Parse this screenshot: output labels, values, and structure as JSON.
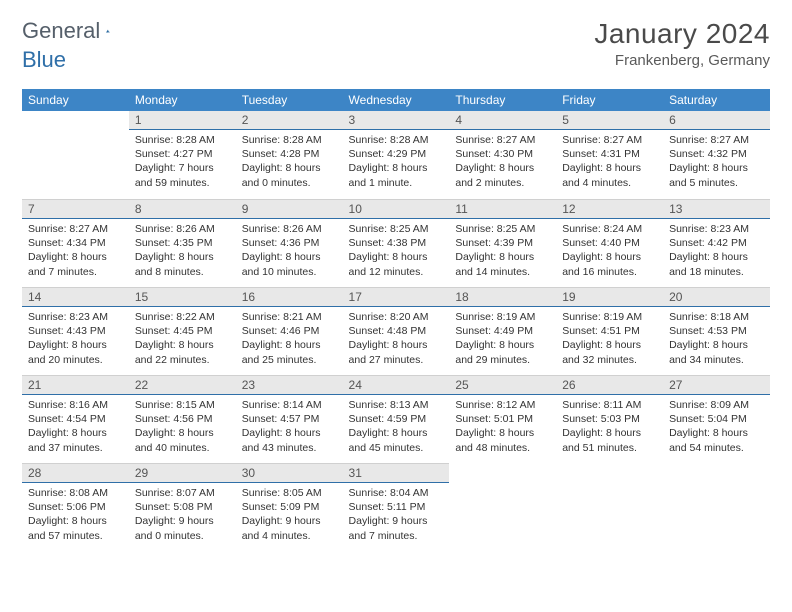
{
  "brand": {
    "part1": "General",
    "part2": "Blue"
  },
  "title": "January 2024",
  "location": "Frankenberg, Germany",
  "weekdays": [
    "Sunday",
    "Monday",
    "Tuesday",
    "Wednesday",
    "Thursday",
    "Friday",
    "Saturday"
  ],
  "colors": {
    "header_bg": "#3d85c6",
    "header_fg": "#ffffff",
    "daynum_bg": "#e8e8e8",
    "daynum_border": "#2f6fa8",
    "logo_icon": "#2a6aa0"
  },
  "weeks": [
    [
      {
        "n": "",
        "sunrise": "",
        "sunset": "",
        "daylight": ""
      },
      {
        "n": "1",
        "sunrise": "Sunrise: 8:28 AM",
        "sunset": "Sunset: 4:27 PM",
        "daylight": "Daylight: 7 hours and 59 minutes."
      },
      {
        "n": "2",
        "sunrise": "Sunrise: 8:28 AM",
        "sunset": "Sunset: 4:28 PM",
        "daylight": "Daylight: 8 hours and 0 minutes."
      },
      {
        "n": "3",
        "sunrise": "Sunrise: 8:28 AM",
        "sunset": "Sunset: 4:29 PM",
        "daylight": "Daylight: 8 hours and 1 minute."
      },
      {
        "n": "4",
        "sunrise": "Sunrise: 8:27 AM",
        "sunset": "Sunset: 4:30 PM",
        "daylight": "Daylight: 8 hours and 2 minutes."
      },
      {
        "n": "5",
        "sunrise": "Sunrise: 8:27 AM",
        "sunset": "Sunset: 4:31 PM",
        "daylight": "Daylight: 8 hours and 4 minutes."
      },
      {
        "n": "6",
        "sunrise": "Sunrise: 8:27 AM",
        "sunset": "Sunset: 4:32 PM",
        "daylight": "Daylight: 8 hours and 5 minutes."
      }
    ],
    [
      {
        "n": "7",
        "sunrise": "Sunrise: 8:27 AM",
        "sunset": "Sunset: 4:34 PM",
        "daylight": "Daylight: 8 hours and 7 minutes."
      },
      {
        "n": "8",
        "sunrise": "Sunrise: 8:26 AM",
        "sunset": "Sunset: 4:35 PM",
        "daylight": "Daylight: 8 hours and 8 minutes."
      },
      {
        "n": "9",
        "sunrise": "Sunrise: 8:26 AM",
        "sunset": "Sunset: 4:36 PM",
        "daylight": "Daylight: 8 hours and 10 minutes."
      },
      {
        "n": "10",
        "sunrise": "Sunrise: 8:25 AM",
        "sunset": "Sunset: 4:38 PM",
        "daylight": "Daylight: 8 hours and 12 minutes."
      },
      {
        "n": "11",
        "sunrise": "Sunrise: 8:25 AM",
        "sunset": "Sunset: 4:39 PM",
        "daylight": "Daylight: 8 hours and 14 minutes."
      },
      {
        "n": "12",
        "sunrise": "Sunrise: 8:24 AM",
        "sunset": "Sunset: 4:40 PM",
        "daylight": "Daylight: 8 hours and 16 minutes."
      },
      {
        "n": "13",
        "sunrise": "Sunrise: 8:23 AM",
        "sunset": "Sunset: 4:42 PM",
        "daylight": "Daylight: 8 hours and 18 minutes."
      }
    ],
    [
      {
        "n": "14",
        "sunrise": "Sunrise: 8:23 AM",
        "sunset": "Sunset: 4:43 PM",
        "daylight": "Daylight: 8 hours and 20 minutes."
      },
      {
        "n": "15",
        "sunrise": "Sunrise: 8:22 AM",
        "sunset": "Sunset: 4:45 PM",
        "daylight": "Daylight: 8 hours and 22 minutes."
      },
      {
        "n": "16",
        "sunrise": "Sunrise: 8:21 AM",
        "sunset": "Sunset: 4:46 PM",
        "daylight": "Daylight: 8 hours and 25 minutes."
      },
      {
        "n": "17",
        "sunrise": "Sunrise: 8:20 AM",
        "sunset": "Sunset: 4:48 PM",
        "daylight": "Daylight: 8 hours and 27 minutes."
      },
      {
        "n": "18",
        "sunrise": "Sunrise: 8:19 AM",
        "sunset": "Sunset: 4:49 PM",
        "daylight": "Daylight: 8 hours and 29 minutes."
      },
      {
        "n": "19",
        "sunrise": "Sunrise: 8:19 AM",
        "sunset": "Sunset: 4:51 PM",
        "daylight": "Daylight: 8 hours and 32 minutes."
      },
      {
        "n": "20",
        "sunrise": "Sunrise: 8:18 AM",
        "sunset": "Sunset: 4:53 PM",
        "daylight": "Daylight: 8 hours and 34 minutes."
      }
    ],
    [
      {
        "n": "21",
        "sunrise": "Sunrise: 8:16 AM",
        "sunset": "Sunset: 4:54 PM",
        "daylight": "Daylight: 8 hours and 37 minutes."
      },
      {
        "n": "22",
        "sunrise": "Sunrise: 8:15 AM",
        "sunset": "Sunset: 4:56 PM",
        "daylight": "Daylight: 8 hours and 40 minutes."
      },
      {
        "n": "23",
        "sunrise": "Sunrise: 8:14 AM",
        "sunset": "Sunset: 4:57 PM",
        "daylight": "Daylight: 8 hours and 43 minutes."
      },
      {
        "n": "24",
        "sunrise": "Sunrise: 8:13 AM",
        "sunset": "Sunset: 4:59 PM",
        "daylight": "Daylight: 8 hours and 45 minutes."
      },
      {
        "n": "25",
        "sunrise": "Sunrise: 8:12 AM",
        "sunset": "Sunset: 5:01 PM",
        "daylight": "Daylight: 8 hours and 48 minutes."
      },
      {
        "n": "26",
        "sunrise": "Sunrise: 8:11 AM",
        "sunset": "Sunset: 5:03 PM",
        "daylight": "Daylight: 8 hours and 51 minutes."
      },
      {
        "n": "27",
        "sunrise": "Sunrise: 8:09 AM",
        "sunset": "Sunset: 5:04 PM",
        "daylight": "Daylight: 8 hours and 54 minutes."
      }
    ],
    [
      {
        "n": "28",
        "sunrise": "Sunrise: 8:08 AM",
        "sunset": "Sunset: 5:06 PM",
        "daylight": "Daylight: 8 hours and 57 minutes."
      },
      {
        "n": "29",
        "sunrise": "Sunrise: 8:07 AM",
        "sunset": "Sunset: 5:08 PM",
        "daylight": "Daylight: 9 hours and 0 minutes."
      },
      {
        "n": "30",
        "sunrise": "Sunrise: 8:05 AM",
        "sunset": "Sunset: 5:09 PM",
        "daylight": "Daylight: 9 hours and 4 minutes."
      },
      {
        "n": "31",
        "sunrise": "Sunrise: 8:04 AM",
        "sunset": "Sunset: 5:11 PM",
        "daylight": "Daylight: 9 hours and 7 minutes."
      },
      {
        "n": "",
        "sunrise": "",
        "sunset": "",
        "daylight": ""
      },
      {
        "n": "",
        "sunrise": "",
        "sunset": "",
        "daylight": ""
      },
      {
        "n": "",
        "sunrise": "",
        "sunset": "",
        "daylight": ""
      }
    ]
  ]
}
